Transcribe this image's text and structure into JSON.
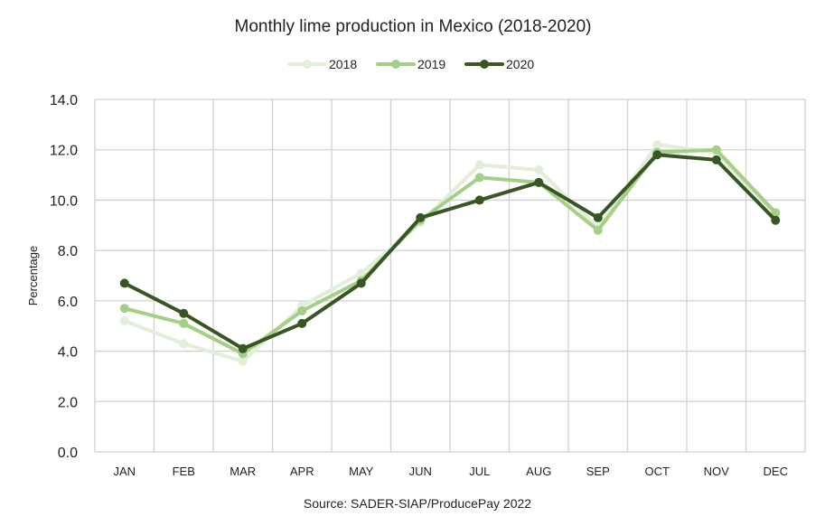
{
  "chart_data": {
    "type": "line",
    "title": "Monthly lime production in Mexico (2018-2020)",
    "xlabel": "",
    "ylabel": "Percentage",
    "source": "Source: SADER-SIAP/ProducePay 2022",
    "categories": [
      "JAN",
      "FEB",
      "MAR",
      "APR",
      "MAY",
      "JUN",
      "JUL",
      "AUG",
      "SEP",
      "OCT",
      "NOV",
      "DEC"
    ],
    "ylim": [
      0,
      14
    ],
    "yticks": [
      "0.0",
      "2.0",
      "4.0",
      "6.0",
      "8.0",
      "10.0",
      "12.0",
      "14.0"
    ],
    "grid": true,
    "legend_position": "top-center",
    "series": [
      {
        "name": "2018",
        "color": "#e2eed8",
        "values": [
          5.2,
          4.3,
          3.6,
          5.8,
          7.1,
          9.1,
          11.4,
          11.2,
          8.9,
          12.2,
          11.9,
          9.4
        ]
      },
      {
        "name": "2019",
        "color": "#a3cf86",
        "values": [
          5.7,
          5.1,
          3.9,
          5.6,
          6.8,
          9.2,
          10.9,
          10.7,
          8.8,
          11.9,
          12.0,
          9.5
        ]
      },
      {
        "name": "2020",
        "color": "#375623",
        "values": [
          6.7,
          5.5,
          4.1,
          5.1,
          6.7,
          9.3,
          10.0,
          10.7,
          9.3,
          11.8,
          11.6,
          9.2
        ]
      }
    ]
  }
}
